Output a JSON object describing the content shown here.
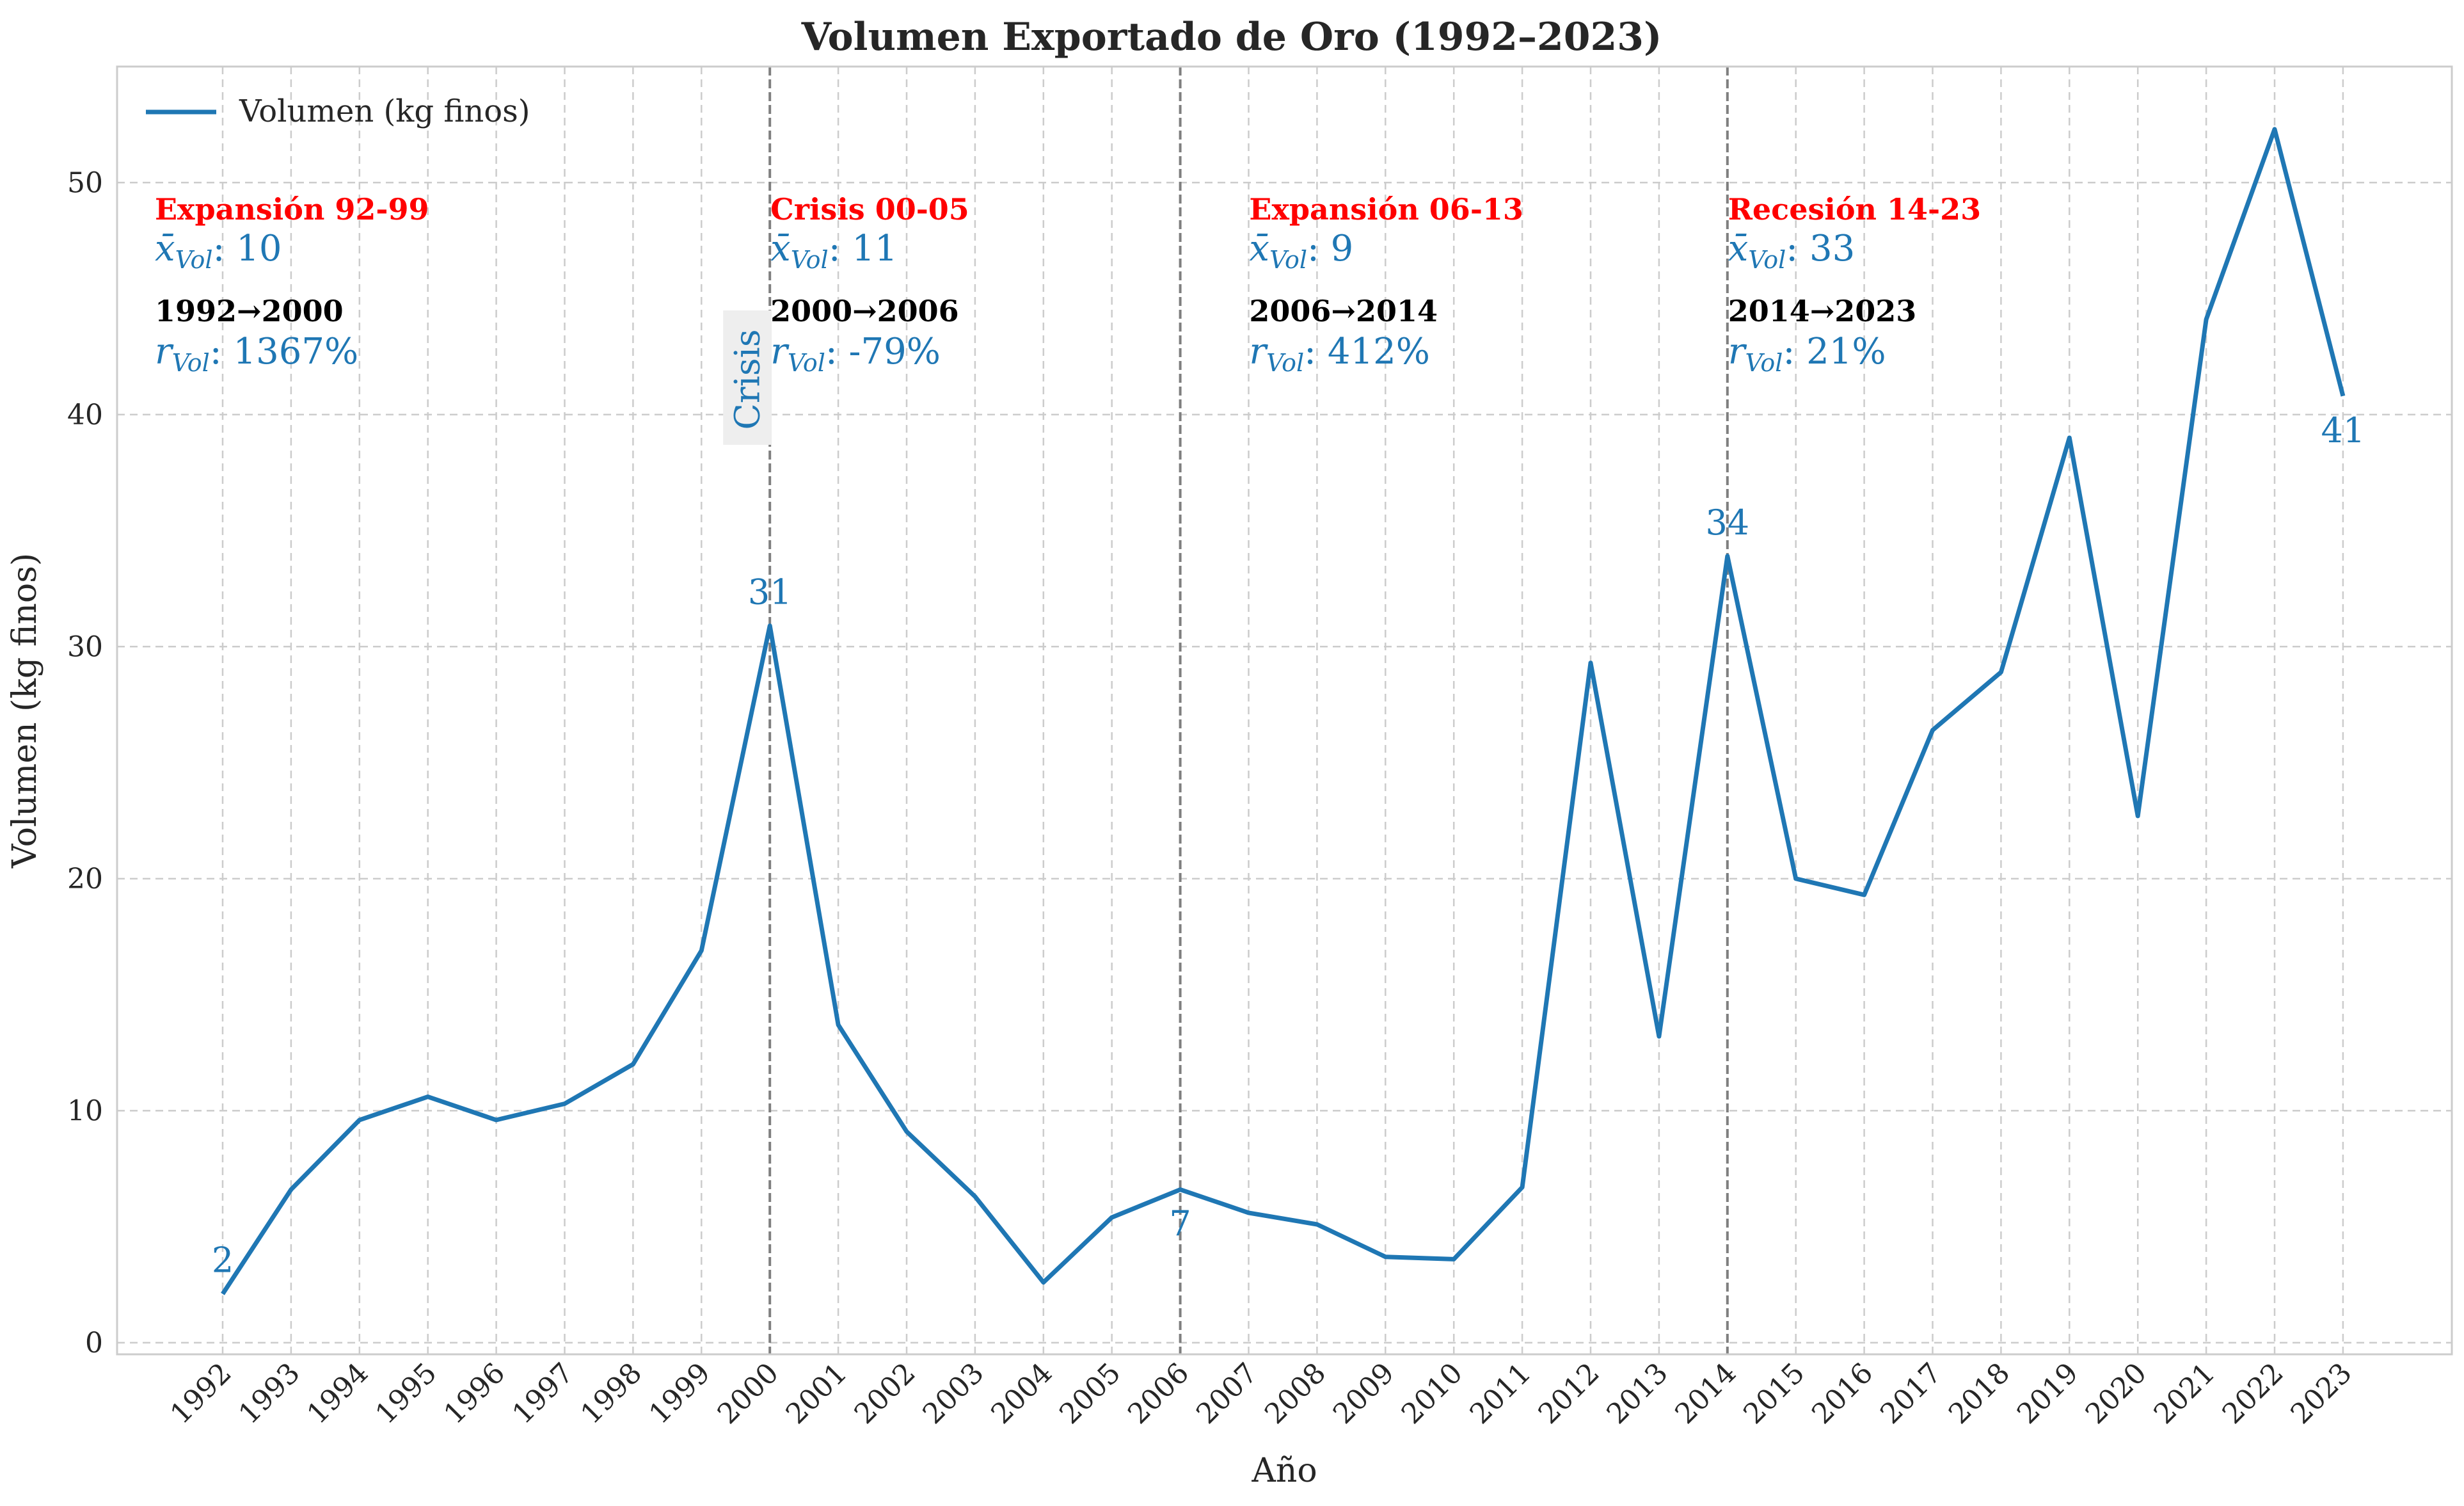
{
  "chart_data": {
    "type": "line",
    "title": "Volumen Exportado de Oro (1992–2023)",
    "xlabel": "Año",
    "ylabel": "Volumen (kg finos)",
    "ylim": [
      -0.5,
      55
    ],
    "yticks": [
      0,
      10,
      20,
      30,
      40,
      50
    ],
    "grid": true,
    "legend_position": "top-left",
    "categories": [
      "1992",
      "1993",
      "1994",
      "1995",
      "1996",
      "1997",
      "1998",
      "1999",
      "2000",
      "2001",
      "2002",
      "2003",
      "2004",
      "2005",
      "2006",
      "2007",
      "2008",
      "2009",
      "2010",
      "2011",
      "2012",
      "2013",
      "2014",
      "2015",
      "2016",
      "2017",
      "2018",
      "2019",
      "2020",
      "2021",
      "2022",
      "2023"
    ],
    "series": [
      {
        "name": "Volumen (kg finos)",
        "color": "#1f77b4",
        "values": [
          2.1,
          6.6,
          9.6,
          10.6,
          9.6,
          10.3,
          12.0,
          16.9,
          30.9,
          13.7,
          9.1,
          6.3,
          2.6,
          5.4,
          6.6,
          5.6,
          5.1,
          3.7,
          3.6,
          6.7,
          29.3,
          13.2,
          33.9,
          20.0,
          19.3,
          26.4,
          28.9,
          39.0,
          22.7,
          44.1,
          52.3,
          40.8
        ]
      }
    ],
    "vertical_lines": [
      "2000",
      "2006",
      "2014"
    ],
    "point_labels": [
      {
        "year": "1992",
        "text": "2",
        "pos": "above"
      },
      {
        "year": "2000",
        "text": "31",
        "pos": "above"
      },
      {
        "year": "2006",
        "text": "7",
        "pos": "below"
      },
      {
        "year": "2014",
        "text": "34",
        "pos": "above"
      },
      {
        "year": "2023",
        "text": "41",
        "pos": "below"
      }
    ],
    "crisis_marker": {
      "year": "2000",
      "text": "Crisis"
    },
    "period_annotations": [
      {
        "anchor_year": "1992",
        "name": "Expansión 92-99",
        "mean_symbol": "x̄",
        "mean_sub": "Vol",
        "mean_value": ": 10",
        "range": "1992→2000",
        "rate_symbol": "r",
        "rate_sub": "Vol",
        "rate_value": ": 1367%"
      },
      {
        "anchor_year": "2001",
        "name": "Crisis 00-05",
        "mean_symbol": "x̄",
        "mean_sub": "Vol",
        "mean_value": ": 11",
        "range": "2000→2006",
        "rate_symbol": "r",
        "rate_sub": "Vol",
        "rate_value": ": -79%"
      },
      {
        "anchor_year": "2008",
        "name": "Expansión 06-13",
        "mean_symbol": "x̄",
        "mean_sub": "Vol",
        "mean_value": ": 9",
        "range": "2006→2014",
        "rate_symbol": "r",
        "rate_sub": "Vol",
        "rate_value": ": 412%"
      },
      {
        "anchor_year": "2015",
        "name": "Recesión 14-23",
        "mean_symbol": "x̄",
        "mean_sub": "Vol",
        "mean_value": ": 33",
        "range": "2014→2023",
        "rate_symbol": "r",
        "rate_sub": "Vol",
        "rate_value": ": 21%"
      }
    ]
  }
}
